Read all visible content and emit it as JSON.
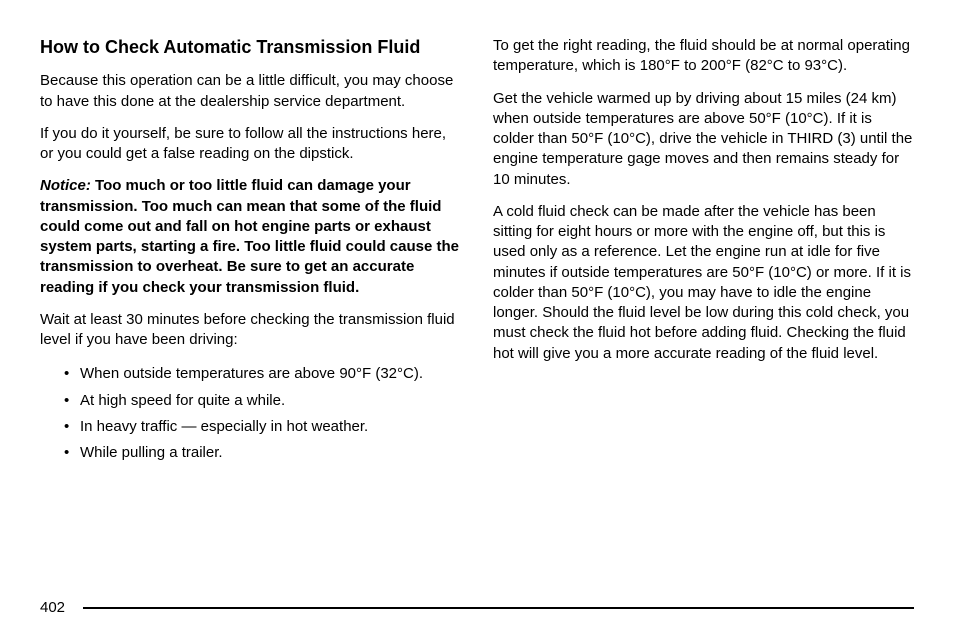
{
  "heading": "How to Check Automatic Transmission Fluid",
  "left": {
    "p1": "Because this operation can be a little difficult, you may choose to have this done at the dealership service department.",
    "p2": "If you do it yourself, be sure to follow all the instructions here, or you could get a false reading on the dipstick.",
    "notice_label": "Notice:",
    "notice_body": "Too much or too little fluid can damage your transmission. Too much can mean that some of the fluid could come out and fall on hot engine parts or exhaust system parts, starting a fire. Too little fluid could cause the transmission to overheat. Be sure to get an accurate reading if you check your transmission fluid.",
    "p3": "Wait at least 30 minutes before checking the transmission fluid level if you have been driving:",
    "bullets": [
      "When outside temperatures are above 90°F (32°C).",
      "At high speed for quite a while.",
      "In heavy traffic — especially in hot weather.",
      "While pulling a trailer."
    ]
  },
  "right": {
    "p1": "To get the right reading, the fluid should be at normal operating temperature, which is 180°F to 200°F (82°C to 93°C).",
    "p2": "Get the vehicle warmed up by driving about 15 miles (24 km) when outside temperatures are above 50°F (10°C). If it is colder than 50°F (10°C), drive the vehicle in THIRD (3) until the engine temperature gage moves and then remains steady for 10 minutes.",
    "p3": "A cold fluid check can be made after the vehicle has been sitting for eight hours or more with the engine off, but this is used only as a reference. Let the engine run at idle for five minutes if outside temperatures are 50°F (10°C) or more. If it is colder than 50°F (10°C), you may have to idle the engine longer. Should the fluid level be low during this cold check, you must check the fluid hot before adding fluid. Checking the fluid hot will give you a more accurate reading of the fluid level."
  },
  "page_number": "402"
}
